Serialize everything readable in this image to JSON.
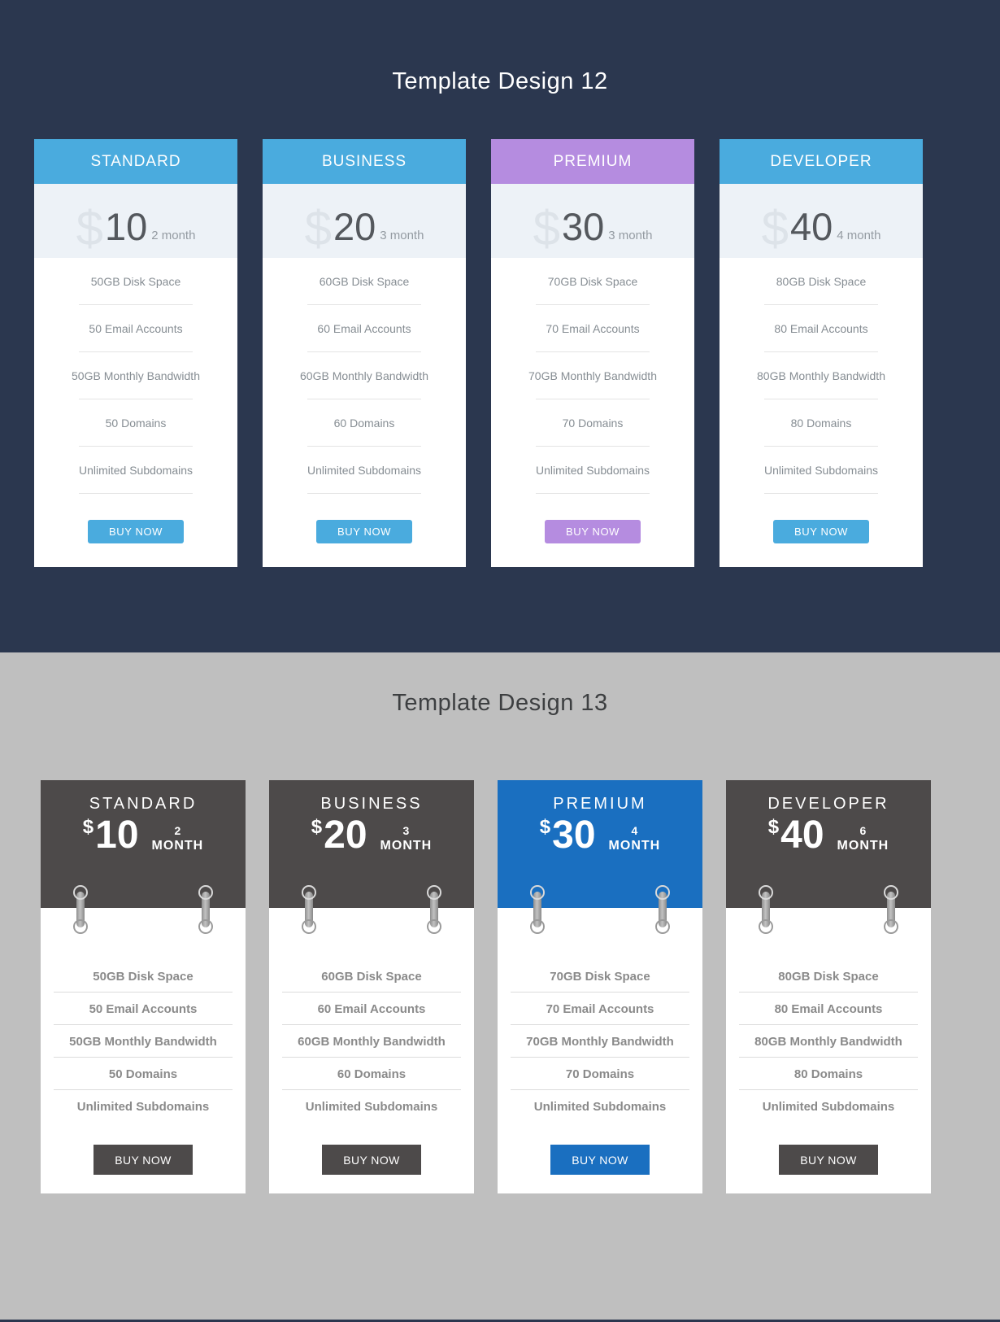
{
  "colors": {
    "navy_background": "#2b374f",
    "gray_background": "#bfbfbf",
    "blue_header_12": "#4aabde",
    "purple_header_12": "#b58ce0",
    "price_area_bg_12": "#edf2f7",
    "dark_header_13": "#4d4a4a",
    "blue_header_13": "#1a6fc0"
  },
  "section12": {
    "title": "Template Design 12",
    "plans": [
      {
        "name": "STANDARD",
        "currency": "$",
        "amount": "10",
        "term": "2 month",
        "features": [
          "50GB Disk Space",
          "50 Email Accounts",
          "50GB Monthly Bandwidth",
          "50 Domains",
          "Unlimited Subdomains"
        ],
        "button_label": "BUY NOW"
      },
      {
        "name": "BUSINESS",
        "currency": "$",
        "amount": "20",
        "term": "3 month",
        "features": [
          "60GB Disk Space",
          "60 Email Accounts",
          "60GB Monthly Bandwidth",
          "60 Domains",
          "Unlimited Subdomains"
        ],
        "button_label": "BUY NOW"
      },
      {
        "name": "PREMIUM",
        "currency": "$",
        "amount": "30",
        "term": "3 month",
        "features": [
          "70GB Disk Space",
          "70 Email Accounts",
          "70GB Monthly Bandwidth",
          "70 Domains",
          "Unlimited Subdomains"
        ],
        "button_label": "BUY NOW"
      },
      {
        "name": "DEVELOPER",
        "currency": "$",
        "amount": "40",
        "term": "4 month",
        "features": [
          "80GB Disk Space",
          "80 Email Accounts",
          "80GB Monthly Bandwidth",
          "80 Domains",
          "Unlimited Subdomains"
        ],
        "button_label": "BUY NOW"
      }
    ]
  },
  "section13": {
    "title": "Template Design 13",
    "plans": [
      {
        "name": "STANDARD",
        "currency": "$",
        "amount": "10",
        "term_number": "2",
        "term_unit": "MONTH",
        "features": [
          "50GB Disk Space",
          "50 Email Accounts",
          "50GB Monthly Bandwidth",
          "50 Domains",
          "Unlimited Subdomains"
        ],
        "button_label": "BUY NOW"
      },
      {
        "name": "BUSINESS",
        "currency": "$",
        "amount": "20",
        "term_number": "3",
        "term_unit": "MONTH",
        "features": [
          "60GB Disk Space",
          "60 Email Accounts",
          "60GB Monthly Bandwidth",
          "60 Domains",
          "Unlimited Subdomains"
        ],
        "button_label": "BUY NOW"
      },
      {
        "name": "PREMIUM",
        "currency": "$",
        "amount": "30",
        "term_number": "4",
        "term_unit": "MONTH",
        "features": [
          "70GB Disk Space",
          "70 Email Accounts",
          "70GB Monthly Bandwidth",
          "70 Domains",
          "Unlimited Subdomains"
        ],
        "button_label": "BUY NOW"
      },
      {
        "name": "DEVELOPER",
        "currency": "$",
        "amount": "40",
        "term_number": "6",
        "term_unit": "MONTH",
        "features": [
          "80GB Disk Space",
          "80 Email Accounts",
          "80GB Monthly Bandwidth",
          "80 Domains",
          "Unlimited Subdomains"
        ],
        "button_label": "BUY NOW"
      }
    ]
  }
}
